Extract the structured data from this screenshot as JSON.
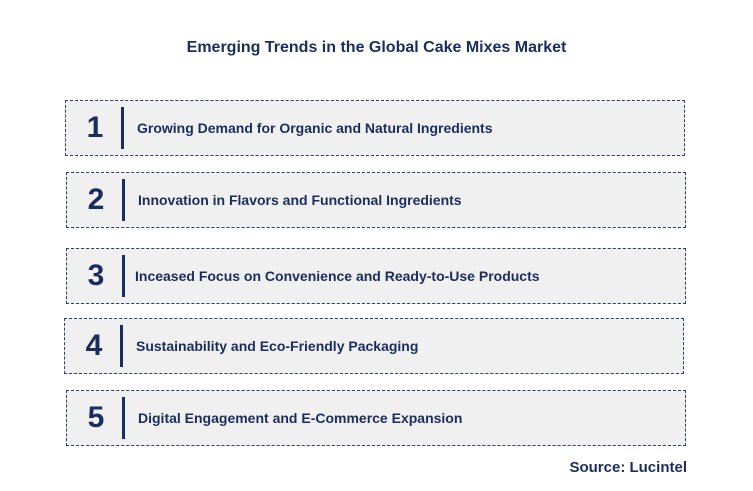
{
  "title": "Emerging Trends in the Global Cake Mixes Market",
  "trends": [
    {
      "number": "1",
      "label": "Growing Demand for Organic and Natural Ingredients"
    },
    {
      "number": "2",
      "label": "Innovation in Flavors and Functional Ingredients"
    },
    {
      "number": "3",
      "label": "Inceased Focus on Convenience and Ready-to-Use Products"
    },
    {
      "number": "4",
      "label": "Sustainability and Eco-Friendly Packaging"
    },
    {
      "number": "5",
      "label": "Digital Engagement and E-Commerce Expansion"
    }
  ],
  "source": "Source: Lucintel",
  "colors": {
    "text": "#1a2d5e",
    "box_background": "#f0f0f0",
    "box_border": "#2c3e6b"
  }
}
